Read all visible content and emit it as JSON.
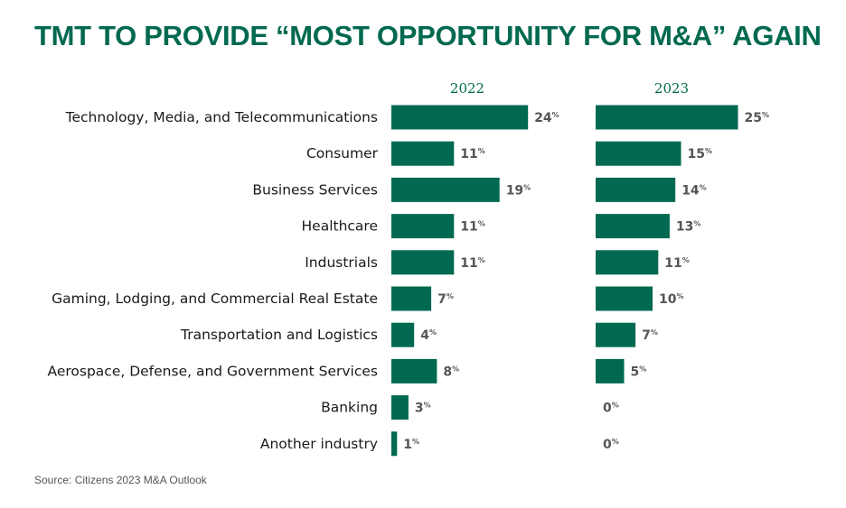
{
  "header": {
    "title": "TMT TO PROVIDE “MOST OPPORTUNITY FOR M&A” AGAIN"
  },
  "footer": {
    "source": "Source: Citizens 2023 M&A Outlook"
  },
  "colors": {
    "bar": "#006950",
    "title": "#006950",
    "value_label": "#555555"
  },
  "chart_data": {
    "type": "bar",
    "orientation": "horizontal",
    "title": "TMT TO PROVIDE “MOST OPPORTUNITY FOR M&A” AGAIN",
    "categories": [
      "Technology, Media, and Telecommunications",
      "Consumer",
      "Business Services",
      "Healthcare",
      "Industrials",
      "Gaming, Lodging, and Commercial Real Estate",
      "Transportation and Logistics",
      "Aerospace, Defense, and Government Services",
      "Banking",
      "Another industry"
    ],
    "series": [
      {
        "name": "2022",
        "values": [
          24,
          11,
          19,
          11,
          11,
          7,
          4,
          8,
          3,
          1
        ]
      },
      {
        "name": "2023",
        "values": [
          25,
          15,
          14,
          13,
          11,
          10,
          7,
          5,
          0,
          0
        ]
      }
    ],
    "unit": "%",
    "xlim": [
      0,
      25
    ],
    "grid": false,
    "legend": "none"
  }
}
